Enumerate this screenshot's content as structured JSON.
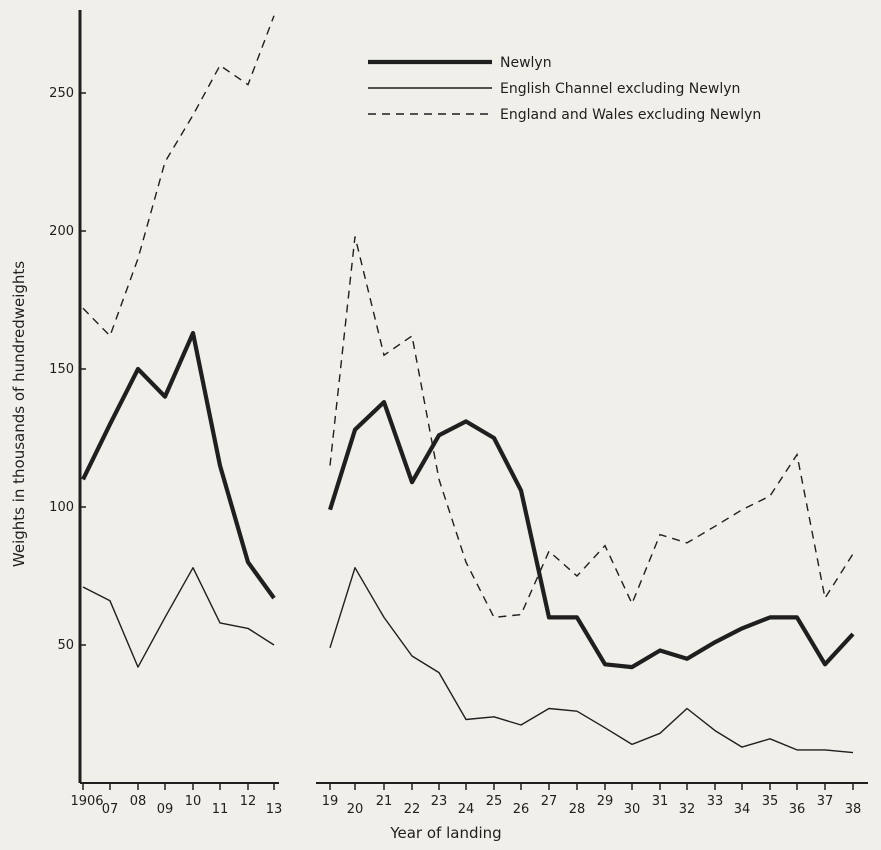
{
  "chart_data": {
    "type": "line",
    "title": "",
    "xlabel": "Year of landing",
    "ylabel": "Weights in thousands of hundredweights",
    "ylim": [
      0,
      280
    ],
    "yticks": [
      50,
      100,
      150,
      200,
      250
    ],
    "x": [
      "1906",
      "07",
      "08",
      "09",
      "10",
      "11",
      "12",
      "13",
      "19",
      "20",
      "21",
      "22",
      "23",
      "24",
      "25",
      "26",
      "27",
      "28",
      "29",
      "30",
      "31",
      "32",
      "33",
      "34",
      "35",
      "36",
      "37",
      "38"
    ],
    "gap_after": "13",
    "legend_position": "top-right",
    "series": [
      {
        "name": "Newlyn",
        "style": "thick",
        "values": [
          110,
          130,
          150,
          140,
          163,
          115,
          80,
          67,
          99,
          128,
          138,
          109,
          126,
          131,
          125,
          106,
          60,
          60,
          43,
          42,
          48,
          45,
          51,
          56,
          60,
          60,
          43,
          54
        ]
      },
      {
        "name": "English Channel excluding Newlyn",
        "style": "thin",
        "values": [
          71,
          66,
          42,
          60,
          78,
          58,
          56,
          50,
          49,
          78,
          60,
          46,
          40,
          23,
          24,
          21,
          27,
          26,
          20,
          14,
          18,
          27,
          19,
          13,
          16,
          12,
          12,
          11
        ]
      },
      {
        "name": "England and Wales excluding Newlyn",
        "style": "dashed",
        "values": [
          172,
          162,
          190,
          225,
          242,
          260,
          253,
          278,
          115,
          198,
          155,
          162,
          110,
          80,
          60,
          61,
          84,
          75,
          86,
          65,
          90,
          87,
          93,
          99,
          104,
          119,
          67,
          83
        ]
      }
    ]
  }
}
